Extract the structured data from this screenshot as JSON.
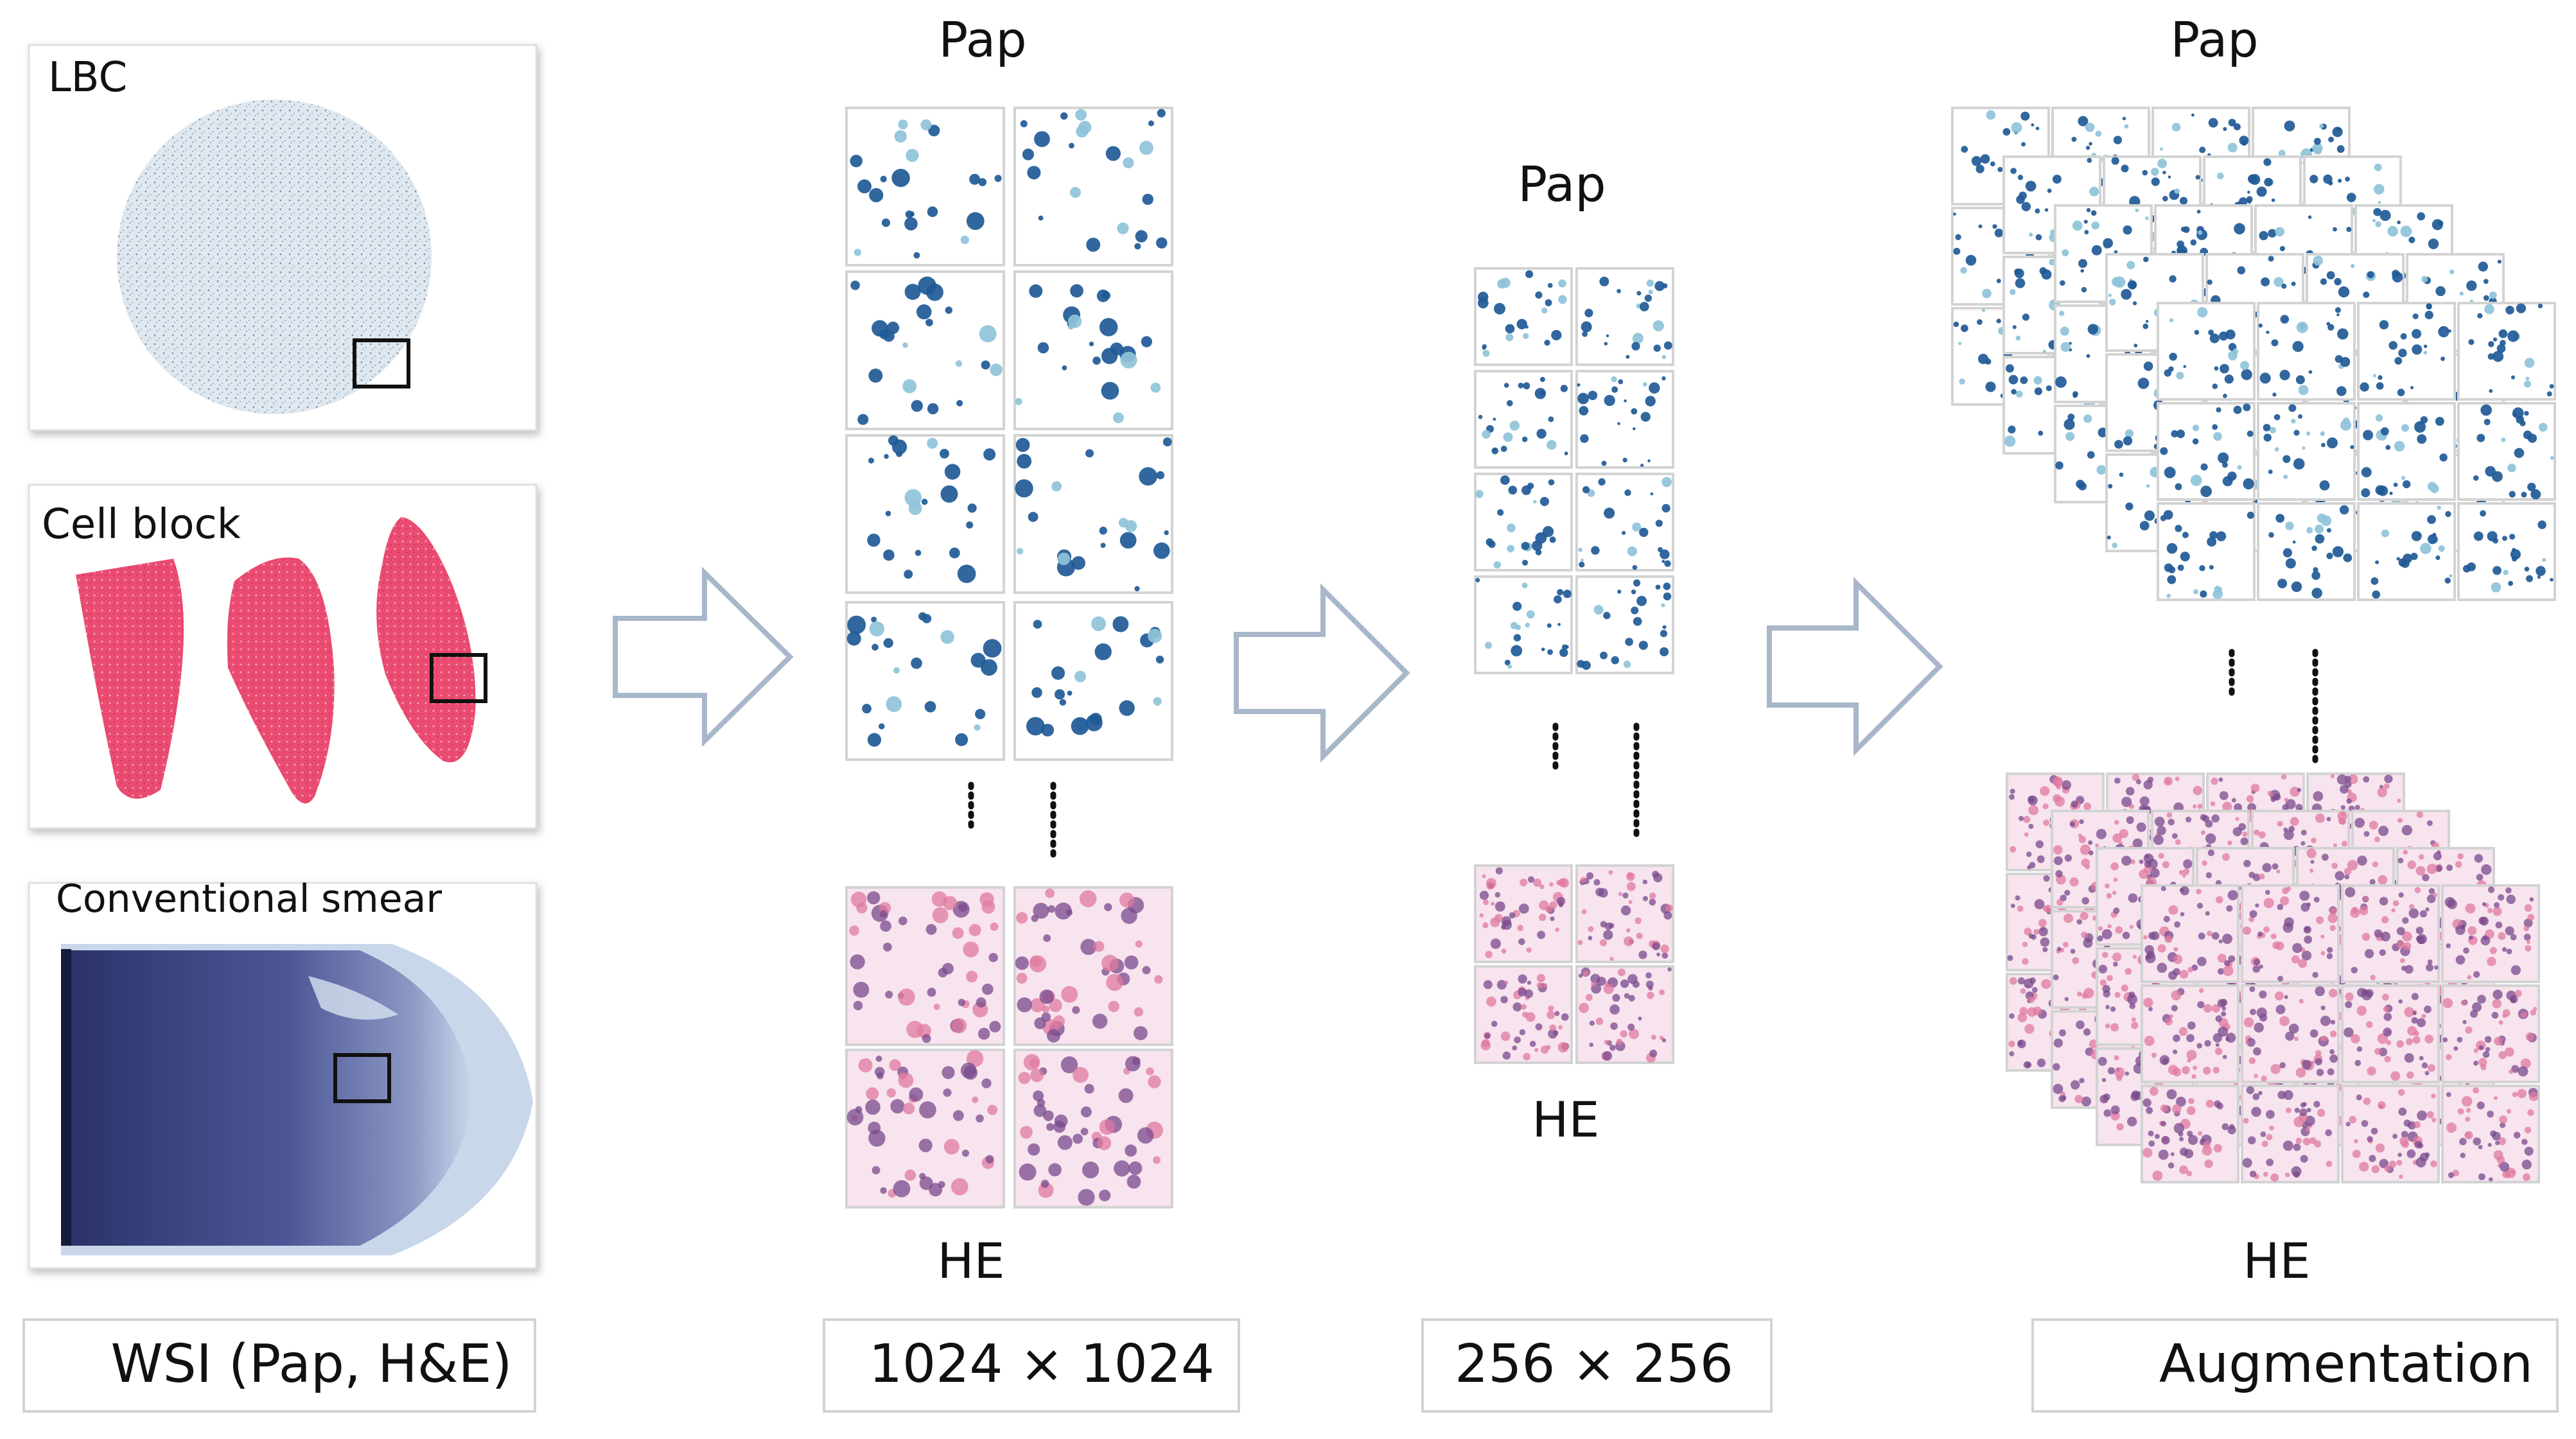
{
  "slides": {
    "lbc": "LBC",
    "cell_block": "Cell block",
    "conventional": "Conventional",
    "smear": "smear"
  },
  "stage_1024": {
    "top_label": "Pap",
    "bottom_label": "HE"
  },
  "stage_256": {
    "top_label": "Pap",
    "bottom_label": "HE"
  },
  "stage_aug": {
    "top_label": "Pap",
    "bottom_label": "HE"
  },
  "captions": {
    "wsi": "WSI (Pap, H&E)",
    "size_1024": "1024 × 1024",
    "size_256": "256 × 256",
    "augmentation": "Augmentation"
  },
  "colors": {
    "pap_nucleus": "#1f5a96",
    "pap_cyto": "#8fc3d9",
    "he_pink": "#e07aa0",
    "he_purple": "#7a4a8c",
    "cell_block_pink": "#ea4b70",
    "arrow_stroke": "#a8b7c9",
    "frame_border": "#d3d3d3"
  }
}
